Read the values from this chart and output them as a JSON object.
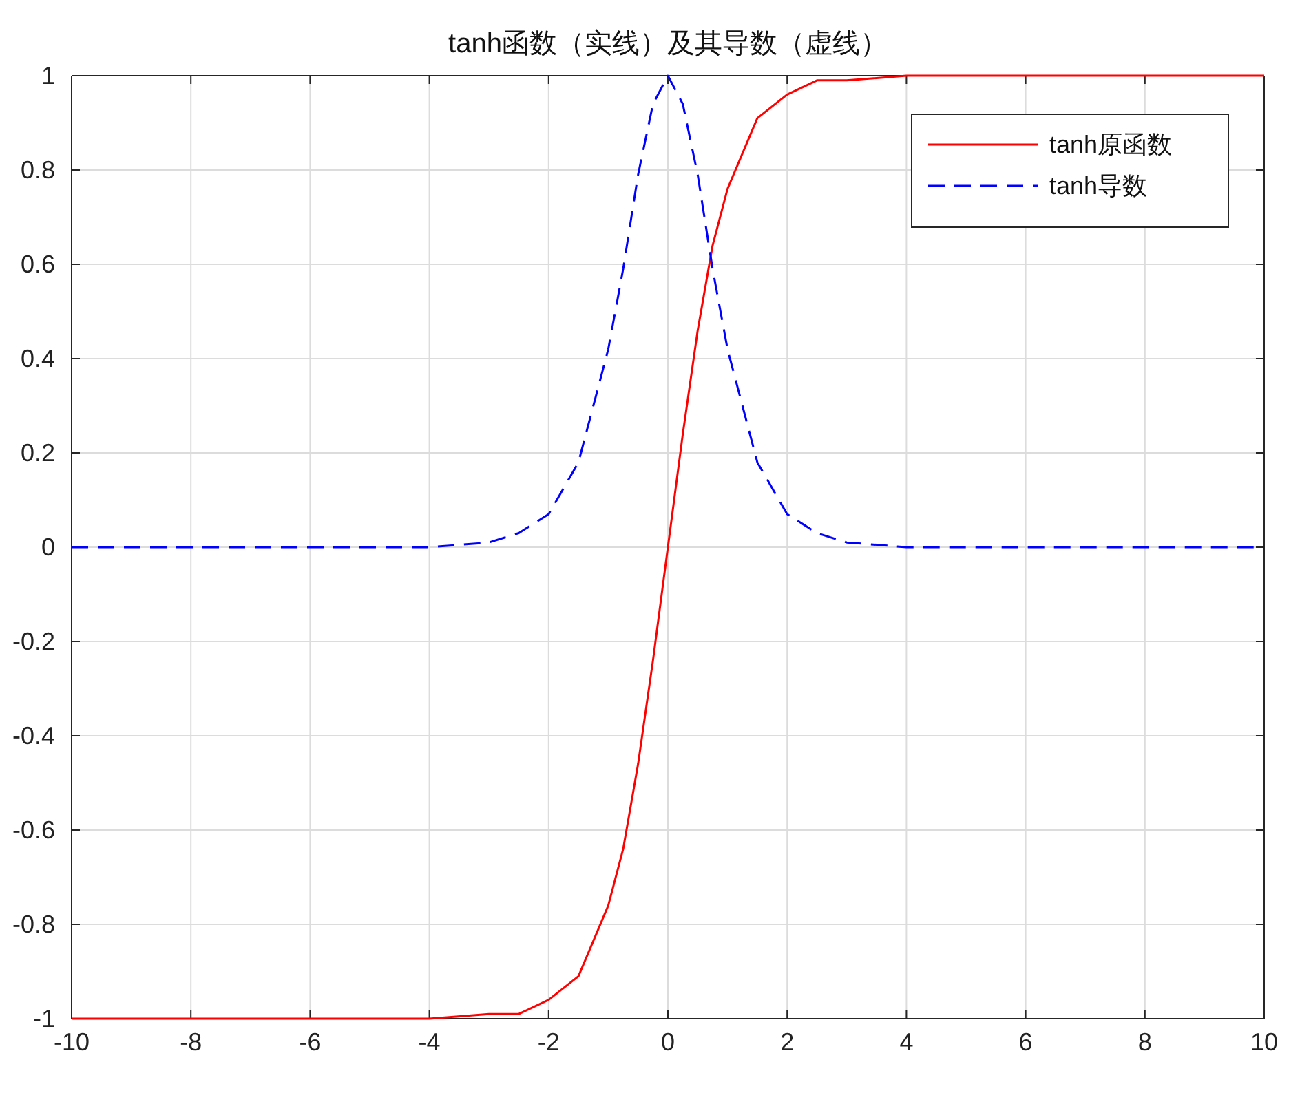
{
  "chart_data": {
    "type": "line",
    "title": "tanh函数（实线）及其导数（虚线）",
    "x": [
      -10,
      -4,
      -3,
      -2.5,
      -2,
      -1.5,
      -1,
      -0.75,
      -0.5,
      -0.25,
      0,
      0.25,
      0.5,
      0.75,
      1,
      1.5,
      2,
      2.5,
      3,
      4,
      10
    ],
    "series": [
      {
        "name": "tanh原函数",
        "color": "#ff0000",
        "line_style": "solid",
        "values": [
          -1,
          -1,
          -0.99,
          -0.99,
          -0.96,
          -0.91,
          -0.76,
          -0.64,
          -0.46,
          -0.24,
          0,
          0.24,
          0.46,
          0.64,
          0.76,
          0.91,
          0.96,
          0.99,
          0.99,
          1,
          1
        ]
      },
      {
        "name": "tanh导数",
        "color": "#0000ff",
        "line_style": "dashed",
        "values": [
          0,
          0,
          0.01,
          0.03,
          0.07,
          0.18,
          0.42,
          0.59,
          0.79,
          0.94,
          1,
          0.94,
          0.79,
          0.59,
          0.42,
          0.18,
          0.07,
          0.03,
          0.01,
          0,
          0
        ]
      }
    ],
    "xlim": [
      -10,
      10
    ],
    "xticks": [
      -10,
      -8,
      -6,
      -4,
      -2,
      0,
      2,
      4,
      6,
      8,
      10
    ],
    "ylim": [
      -1,
      1
    ],
    "yticks": [
      -1,
      -0.8,
      -0.6,
      -0.4,
      -0.2,
      0,
      0.2,
      0.4,
      0.6,
      0.8,
      1
    ],
    "grid": true,
    "legend": "top right",
    "marker": "none"
  }
}
